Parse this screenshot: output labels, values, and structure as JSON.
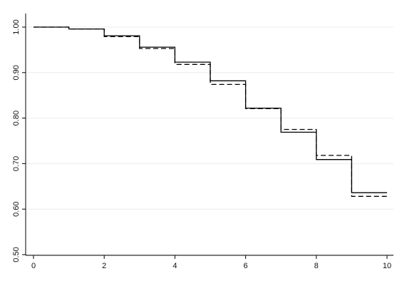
{
  "chart_data": {
    "type": "line",
    "step": true,
    "title": "",
    "xlabel": "",
    "ylabel": "",
    "xlim": [
      0,
      10
    ],
    "ylim": [
      0.5,
      1.0
    ],
    "grid": true,
    "legend": "none",
    "x_ticks": [
      0,
      2,
      4,
      6,
      8,
      10
    ],
    "x_tick_labels": [
      "0",
      "2",
      "4",
      "6",
      "8",
      "10"
    ],
    "y_ticks": [
      0.5,
      0.6,
      0.7,
      0.8,
      0.9,
      1.0
    ],
    "y_tick_labels": [
      "0.50",
      "0.60",
      "0.70",
      "0.80",
      "0.90",
      "1.00"
    ],
    "series": [
      {
        "style": "solid",
        "color": "#000000",
        "x": [
          0,
          1,
          2,
          3,
          4,
          5,
          6,
          7,
          8,
          9,
          10
        ],
        "y": [
          1.0,
          0.996,
          0.981,
          0.956,
          0.923,
          0.882,
          0.822,
          0.769,
          0.709,
          0.636,
          0.636
        ]
      },
      {
        "style": "dashed",
        "color": "#000000",
        "x": [
          0,
          1,
          2,
          3,
          4,
          5,
          6,
          7,
          8,
          9,
          10
        ],
        "y": [
          1.0,
          0.996,
          0.979,
          0.953,
          0.918,
          0.874,
          0.821,
          0.775,
          0.718,
          0.628,
          0.628
        ]
      }
    ]
  }
}
